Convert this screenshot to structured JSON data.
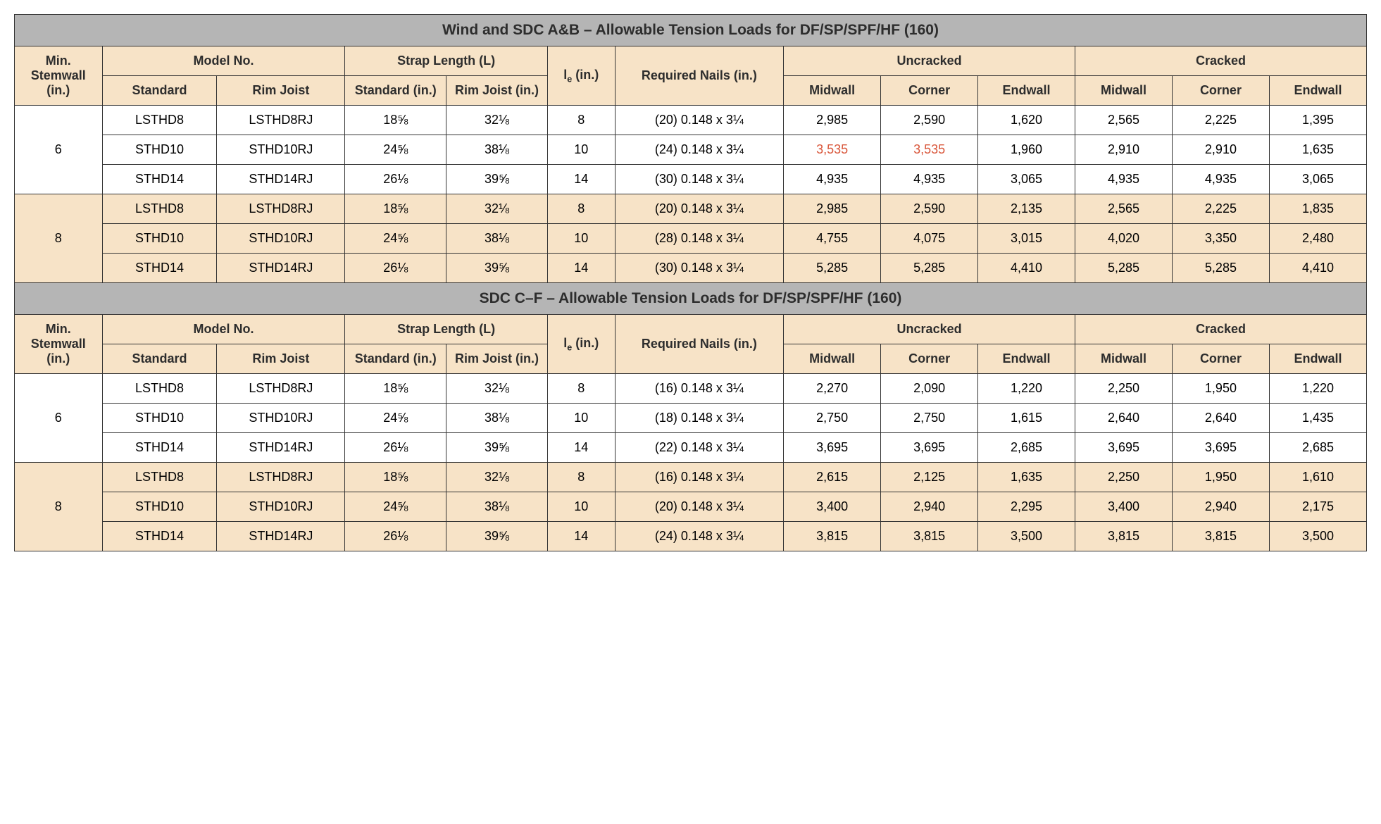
{
  "colors": {
    "title_bg": "#b5b5b5",
    "header_bg": "#f7e3c7",
    "row_white": "#ffffff",
    "row_cream": "#f7e3c7",
    "border": "#333333",
    "text": "#2d2d2d",
    "highlight": "#d9563a"
  },
  "typography": {
    "font_family": "Arial, Helvetica, sans-serif",
    "title_fontsize_pt": 16,
    "header_fontsize_pt": 14,
    "cell_fontsize_pt": 14
  },
  "column_widths_pct": [
    6.5,
    8.5,
    9.5,
    7.5,
    7.5,
    5,
    12.5,
    7.2,
    7.2,
    7.2,
    7.2,
    7.2,
    7.2
  ],
  "sections": [
    {
      "title": "Wind and SDC A&B – Allowable Tension Loads for DF/SP/SPF/HF (160)",
      "headers": {
        "min_stemwall": "Min. Stemwall (in.)",
        "model_no": "Model No.",
        "strap_length": "Strap Length (L)",
        "le_html": "l<sub>e</sub> (in.)",
        "required_nails": "Required Nails (in.)",
        "uncracked": "Uncracked",
        "cracked": "Cracked",
        "standard": "Standard",
        "rim_joist": "Rim Joist",
        "standard_in": "Standard (in.)",
        "rim_joist_in": "Rim Joist (in.)",
        "midwall": "Midwall",
        "corner": "Corner",
        "endwall": "Endwall"
      },
      "groups": [
        {
          "stemwall": "6",
          "bg": "white",
          "rows": [
            {
              "std": "LSTHD8",
              "rj": "LSTHD8RJ",
              "sl_std": "18⅝",
              "sl_rj": "32⅛",
              "le": "8",
              "nails": "(20) 0.148 x 3¼",
              "u_mid": "2,985",
              "u_cor": "2,590",
              "u_end": "1,620",
              "c_mid": "2,565",
              "c_cor": "2,225",
              "c_end": "1,395"
            },
            {
              "std": "STHD10",
              "rj": "STHD10RJ",
              "sl_std": "24⅝",
              "sl_rj": "38⅛",
              "le": "10",
              "nails": "(24) 0.148 x 3¼",
              "u_mid": "3,535",
              "u_cor": "3,535",
              "u_end": "1,960",
              "c_mid": "2,910",
              "c_cor": "2,910",
              "c_end": "1,635",
              "hl": [
                "u_mid",
                "u_cor"
              ]
            },
            {
              "std": "STHD14",
              "rj": "STHD14RJ",
              "sl_std": "26⅛",
              "sl_rj": "39⅝",
              "le": "14",
              "nails": "(30) 0.148 x 3¼",
              "u_mid": "4,935",
              "u_cor": "4,935",
              "u_end": "3,065",
              "c_mid": "4,935",
              "c_cor": "4,935",
              "c_end": "3,065"
            }
          ]
        },
        {
          "stemwall": "8",
          "bg": "cream",
          "rows": [
            {
              "std": "LSTHD8",
              "rj": "LSTHD8RJ",
              "sl_std": "18⅝",
              "sl_rj": "32⅛",
              "le": "8",
              "nails": "(20) 0.148 x 3¼",
              "u_mid": "2,985",
              "u_cor": "2,590",
              "u_end": "2,135",
              "c_mid": "2,565",
              "c_cor": "2,225",
              "c_end": "1,835"
            },
            {
              "std": "STHD10",
              "rj": "STHD10RJ",
              "sl_std": "24⅝",
              "sl_rj": "38⅛",
              "le": "10",
              "nails": "(28) 0.148 x 3¼",
              "u_mid": "4,755",
              "u_cor": "4,075",
              "u_end": "3,015",
              "c_mid": "4,020",
              "c_cor": "3,350",
              "c_end": "2,480"
            },
            {
              "std": "STHD14",
              "rj": "STHD14RJ",
              "sl_std": "26⅛",
              "sl_rj": "39⅝",
              "le": "14",
              "nails": "(30) 0.148 x 3¼",
              "u_mid": "5,285",
              "u_cor": "5,285",
              "u_end": "4,410",
              "c_mid": "5,285",
              "c_cor": "5,285",
              "c_end": "4,410"
            }
          ]
        }
      ]
    },
    {
      "title": "SDC C–F – Allowable Tension Loads for DF/SP/SPF/HF (160)",
      "headers": {
        "min_stemwall": "Min. Stemwall (in.)",
        "model_no": "Model No.",
        "strap_length": "Strap Length (L)",
        "le_html": "l<sub>e</sub> (in.)",
        "required_nails": "Required Nails (in.)",
        "uncracked": "Uncracked",
        "cracked": "Cracked",
        "standard": "Standard",
        "rim_joist": "Rim Joist",
        "standard_in": "Standard (in.)",
        "rim_joist_in": "Rim Joist (in.)",
        "midwall": "Midwall",
        "corner": "Corner",
        "endwall": "Endwall"
      },
      "groups": [
        {
          "stemwall": "6",
          "bg": "white",
          "rows": [
            {
              "std": "LSTHD8",
              "rj": "LSTHD8RJ",
              "sl_std": "18⅝",
              "sl_rj": "32⅛",
              "le": "8",
              "nails": "(16) 0.148 x 3¼",
              "u_mid": "2,270",
              "u_cor": "2,090",
              "u_end": "1,220",
              "c_mid": "2,250",
              "c_cor": "1,950",
              "c_end": "1,220"
            },
            {
              "std": "STHD10",
              "rj": "STHD10RJ",
              "sl_std": "24⅝",
              "sl_rj": "38⅛",
              "le": "10",
              "nails": "(18) 0.148 x 3¼",
              "u_mid": "2,750",
              "u_cor": "2,750",
              "u_end": "1,615",
              "c_mid": "2,640",
              "c_cor": "2,640",
              "c_end": "1,435"
            },
            {
              "std": "STHD14",
              "rj": "STHD14RJ",
              "sl_std": "26⅛",
              "sl_rj": "39⅝",
              "le": "14",
              "nails": "(22) 0.148 x 3¼",
              "u_mid": "3,695",
              "u_cor": "3,695",
              "u_end": "2,685",
              "c_mid": "3,695",
              "c_cor": "3,695",
              "c_end": "2,685"
            }
          ]
        },
        {
          "stemwall": "8",
          "bg": "cream",
          "rows": [
            {
              "std": "LSTHD8",
              "rj": "LSTHD8RJ",
              "sl_std": "18⅝",
              "sl_rj": "32⅛",
              "le": "8",
              "nails": "(16) 0.148 x 3¼",
              "u_mid": "2,615",
              "u_cor": "2,125",
              "u_end": "1,635",
              "c_mid": "2,250",
              "c_cor": "1,950",
              "c_end": "1,610"
            },
            {
              "std": "STHD10",
              "rj": "STHD10RJ",
              "sl_std": "24⅝",
              "sl_rj": "38⅛",
              "le": "10",
              "nails": "(20) 0.148 x 3¼",
              "u_mid": "3,400",
              "u_cor": "2,940",
              "u_end": "2,295",
              "c_mid": "3,400",
              "c_cor": "2,940",
              "c_end": "2,175"
            },
            {
              "std": "STHD14",
              "rj": "STHD14RJ",
              "sl_std": "26⅛",
              "sl_rj": "39⅝",
              "le": "14",
              "nails": "(24) 0.148 x 3¼",
              "u_mid": "3,815",
              "u_cor": "3,815",
              "u_end": "3,500",
              "c_mid": "3,815",
              "c_cor": "3,815",
              "c_end": "3,500"
            }
          ]
        }
      ]
    }
  ]
}
